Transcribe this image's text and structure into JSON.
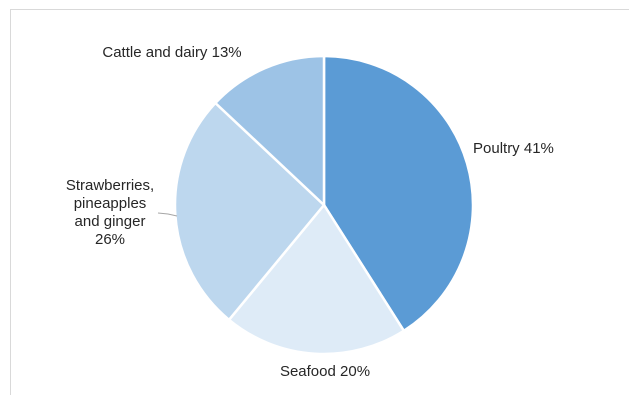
{
  "chart_data": {
    "type": "pie",
    "slices": [
      {
        "label": "Poultry",
        "value": 41,
        "color": "#5b9bd5",
        "label_text": [
          "Poultry 41%"
        ]
      },
      {
        "label": "Seafood",
        "value": 20,
        "color": "#deebf7",
        "label_text": [
          "Seafood 20%"
        ]
      },
      {
        "label": "Strawberries, pineapples and ginger",
        "value": 26,
        "color": "#bdd7ee",
        "label_text": [
          "Strawberries,",
          "pineapples",
          "and ginger",
          "26%"
        ]
      },
      {
        "label": "Cattle and dairy",
        "value": 13,
        "color": "#9dc3e6",
        "label_text": [
          "Cattle and dairy 13%"
        ]
      }
    ]
  }
}
